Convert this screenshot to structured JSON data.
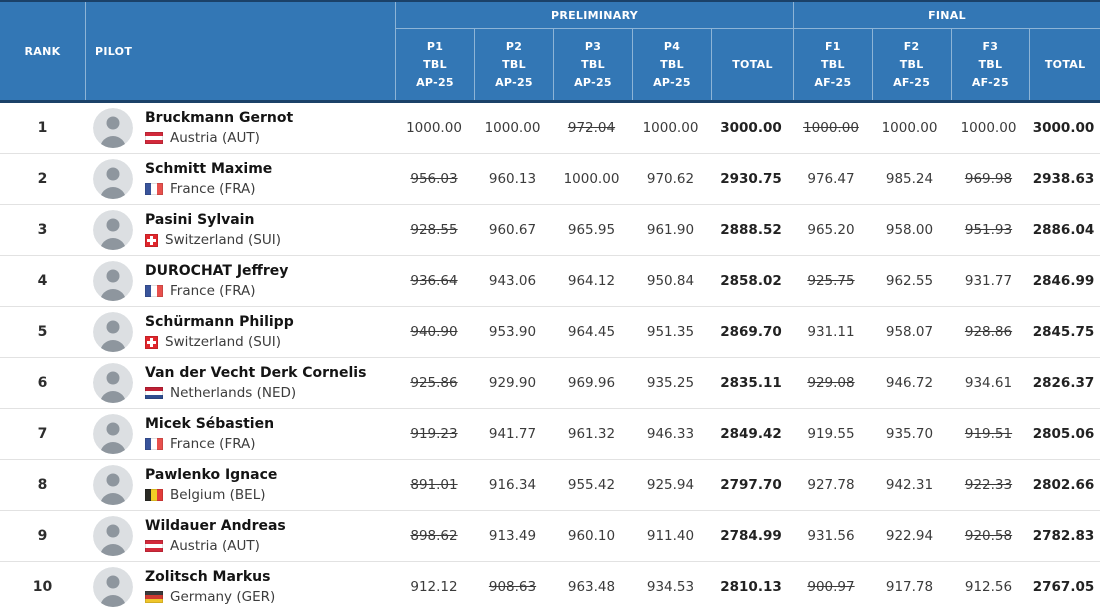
{
  "header": {
    "rank_label": "RANK",
    "pilot_label": "PILOT",
    "preliminary_label": "PRELIMINARY",
    "final_label": "FINAL",
    "prelim_cols": [
      {
        "round": "P1",
        "line2": "TBL",
        "line3": "AP-25"
      },
      {
        "round": "P2",
        "line2": "TBL",
        "line3": "AP-25"
      },
      {
        "round": "P3",
        "line2": "TBL",
        "line3": "AP-25"
      },
      {
        "round": "P4",
        "line2": "TBL",
        "line3": "AP-25"
      }
    ],
    "prelim_total_label": "TOTAL",
    "final_cols": [
      {
        "round": "F1",
        "line2": "TBL",
        "line3": "AF-25"
      },
      {
        "round": "F2",
        "line2": "TBL",
        "line3": "AF-25"
      },
      {
        "round": "F3",
        "line2": "TBL",
        "line3": "AF-25"
      }
    ],
    "final_total_label": "TOTAL"
  },
  "colors": {
    "header_blue": "#3377b5",
    "header_border_navy": "#1b4168",
    "header_separator": "#8db4d6",
    "row_divider": "#e2e2e2"
  },
  "rows": [
    {
      "rank": "1",
      "name": "Bruckmann Gernot",
      "country": "Austria (AUT)",
      "flag": "aut",
      "prelim": [
        {
          "v": "1000.00",
          "strike": false
        },
        {
          "v": "1000.00",
          "strike": false
        },
        {
          "v": "972.04",
          "strike": true
        },
        {
          "v": "1000.00",
          "strike": false
        }
      ],
      "prelim_total": "3000.00",
      "final": [
        {
          "v": "1000.00",
          "strike": true
        },
        {
          "v": "1000.00",
          "strike": false
        },
        {
          "v": "1000.00",
          "strike": false
        }
      ],
      "final_total": "3000.00"
    },
    {
      "rank": "2",
      "name": "Schmitt Maxime",
      "country": "France (FRA)",
      "flag": "fra",
      "prelim": [
        {
          "v": "956.03",
          "strike": true
        },
        {
          "v": "960.13",
          "strike": false
        },
        {
          "v": "1000.00",
          "strike": false
        },
        {
          "v": "970.62",
          "strike": false
        }
      ],
      "prelim_total": "2930.75",
      "final": [
        {
          "v": "976.47",
          "strike": false
        },
        {
          "v": "985.24",
          "strike": false
        },
        {
          "v": "969.98",
          "strike": true
        }
      ],
      "final_total": "2938.63"
    },
    {
      "rank": "3",
      "name": "Pasini Sylvain",
      "country": "Switzerland (SUI)",
      "flag": "sui",
      "prelim": [
        {
          "v": "928.55",
          "strike": true
        },
        {
          "v": "960.67",
          "strike": false
        },
        {
          "v": "965.95",
          "strike": false
        },
        {
          "v": "961.90",
          "strike": false
        }
      ],
      "prelim_total": "2888.52",
      "final": [
        {
          "v": "965.20",
          "strike": false
        },
        {
          "v": "958.00",
          "strike": false
        },
        {
          "v": "951.93",
          "strike": true
        }
      ],
      "final_total": "2886.04"
    },
    {
      "rank": "4",
      "name": "DUROCHAT Jeffrey",
      "country": "France (FRA)",
      "flag": "fra",
      "prelim": [
        {
          "v": "936.64",
          "strike": true
        },
        {
          "v": "943.06",
          "strike": false
        },
        {
          "v": "964.12",
          "strike": false
        },
        {
          "v": "950.84",
          "strike": false
        }
      ],
      "prelim_total": "2858.02",
      "final": [
        {
          "v": "925.75",
          "strike": true
        },
        {
          "v": "962.55",
          "strike": false
        },
        {
          "v": "931.77",
          "strike": false
        }
      ],
      "final_total": "2846.99"
    },
    {
      "rank": "5",
      "name": "Schürmann Philipp",
      "country": "Switzerland (SUI)",
      "flag": "sui",
      "prelim": [
        {
          "v": "940.90",
          "strike": true
        },
        {
          "v": "953.90",
          "strike": false
        },
        {
          "v": "964.45",
          "strike": false
        },
        {
          "v": "951.35",
          "strike": false
        }
      ],
      "prelim_total": "2869.70",
      "final": [
        {
          "v": "931.11",
          "strike": false
        },
        {
          "v": "958.07",
          "strike": false
        },
        {
          "v": "928.86",
          "strike": true
        }
      ],
      "final_total": "2845.75"
    },
    {
      "rank": "6",
      "name": "Van der Vecht Derk Cornelis",
      "country": "Netherlands (NED)",
      "flag": "ned",
      "prelim": [
        {
          "v": "925.86",
          "strike": true
        },
        {
          "v": "929.90",
          "strike": false
        },
        {
          "v": "969.96",
          "strike": false
        },
        {
          "v": "935.25",
          "strike": false
        }
      ],
      "prelim_total": "2835.11",
      "final": [
        {
          "v": "929.08",
          "strike": true
        },
        {
          "v": "946.72",
          "strike": false
        },
        {
          "v": "934.61",
          "strike": false
        }
      ],
      "final_total": "2826.37"
    },
    {
      "rank": "7",
      "name": "Micek Sébastien",
      "country": "France (FRA)",
      "flag": "fra",
      "prelim": [
        {
          "v": "919.23",
          "strike": true
        },
        {
          "v": "941.77",
          "strike": false
        },
        {
          "v": "961.32",
          "strike": false
        },
        {
          "v": "946.33",
          "strike": false
        }
      ],
      "prelim_total": "2849.42",
      "final": [
        {
          "v": "919.55",
          "strike": false
        },
        {
          "v": "935.70",
          "strike": false
        },
        {
          "v": "919.51",
          "strike": true
        }
      ],
      "final_total": "2805.06"
    },
    {
      "rank": "8",
      "name": "Pawlenko Ignace",
      "country": "Belgium (BEL)",
      "flag": "bel",
      "prelim": [
        {
          "v": "891.01",
          "strike": true
        },
        {
          "v": "916.34",
          "strike": false
        },
        {
          "v": "955.42",
          "strike": false
        },
        {
          "v": "925.94",
          "strike": false
        }
      ],
      "prelim_total": "2797.70",
      "final": [
        {
          "v": "927.78",
          "strike": false
        },
        {
          "v": "942.31",
          "strike": false
        },
        {
          "v": "922.33",
          "strike": true
        }
      ],
      "final_total": "2802.66"
    },
    {
      "rank": "9",
      "name": "Wildauer Andreas",
      "country": "Austria (AUT)",
      "flag": "aut",
      "prelim": [
        {
          "v": "898.62",
          "strike": true
        },
        {
          "v": "913.49",
          "strike": false
        },
        {
          "v": "960.10",
          "strike": false
        },
        {
          "v": "911.40",
          "strike": false
        }
      ],
      "prelim_total": "2784.99",
      "final": [
        {
          "v": "931.56",
          "strike": false
        },
        {
          "v": "922.94",
          "strike": false
        },
        {
          "v": "920.58",
          "strike": true
        }
      ],
      "final_total": "2782.83"
    },
    {
      "rank": "10",
      "name": "Zolitsch Markus",
      "country": "Germany (GER)",
      "flag": "ger",
      "prelim": [
        {
          "v": "912.12",
          "strike": false
        },
        {
          "v": "908.63",
          "strike": true
        },
        {
          "v": "963.48",
          "strike": false
        },
        {
          "v": "934.53",
          "strike": false
        }
      ],
      "prelim_total": "2810.13",
      "final": [
        {
          "v": "900.97",
          "strike": true
        },
        {
          "v": "917.78",
          "strike": false
        },
        {
          "v": "912.56",
          "strike": false
        }
      ],
      "final_total": "2767.05"
    }
  ]
}
